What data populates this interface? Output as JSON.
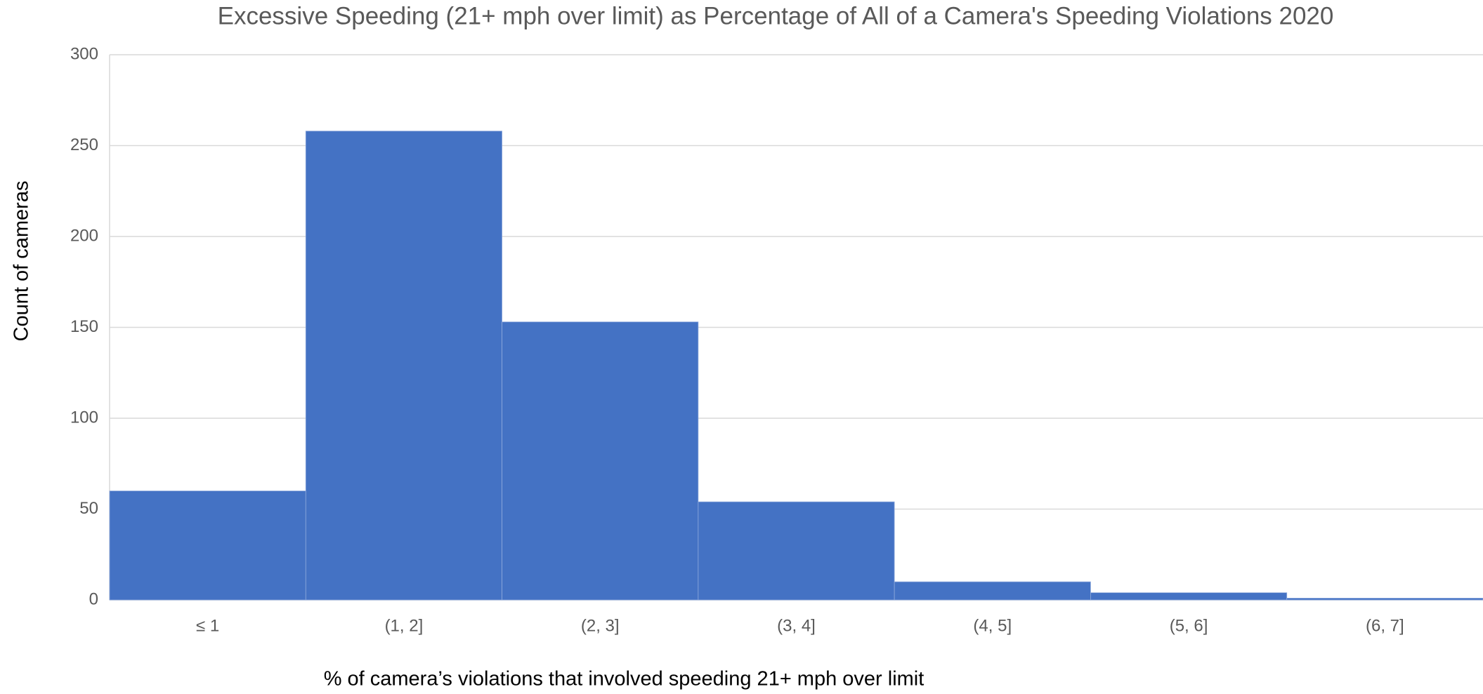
{
  "chart_data": {
    "type": "bar",
    "title": "Excessive Speeding (21+ mph over limit) as Percentage of All of a Camera's Speeding Violations 2020",
    "xlabel": "% of camera’s violations that involved speeding 21+ mph over limit",
    "ylabel": "Count of cameras",
    "categories": [
      "≤ 1",
      "(1, 2]",
      "(2, 3]",
      "(3, 4]",
      "(4, 5]",
      "(5, 6]",
      "(6, 7]"
    ],
    "values": [
      60,
      258,
      153,
      54,
      10,
      4,
      1
    ],
    "color": "#4472c4",
    "ylim": [
      0,
      300
    ],
    "yticks": [
      0,
      50,
      100,
      150,
      200,
      250,
      300
    ],
    "grid": true
  }
}
